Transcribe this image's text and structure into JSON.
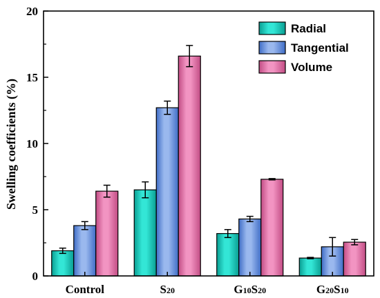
{
  "chart_data": {
    "type": "bar",
    "title": "",
    "xlabel": "",
    "ylabel": "Swelling coefficients (%)",
    "ylim": [
      0,
      20
    ],
    "yticks": [
      0,
      5,
      10,
      15,
      20
    ],
    "categories": [
      {
        "id": "control",
        "parts": [
          {
            "t": "Control",
            "sub": false
          }
        ]
      },
      {
        "id": "s20",
        "parts": [
          {
            "t": "S",
            "sub": false
          },
          {
            "t": "20",
            "sub": true
          }
        ]
      },
      {
        "id": "g10s20",
        "parts": [
          {
            "t": "G",
            "sub": false
          },
          {
            "t": "10",
            "sub": true
          },
          {
            "t": "S",
            "sub": false
          },
          {
            "t": "20",
            "sub": true
          }
        ]
      },
      {
        "id": "g20s10",
        "parts": [
          {
            "t": "G",
            "sub": false
          },
          {
            "t": "20",
            "sub": true
          },
          {
            "t": "S",
            "sub": false
          },
          {
            "t": "10",
            "sub": true
          }
        ]
      }
    ],
    "series": [
      {
        "name": "Radial",
        "color": "#33e6d6",
        "color_dark": "#0a9e92",
        "values": [
          1.9,
          6.5,
          3.2,
          1.35
        ],
        "errors": [
          0.2,
          0.6,
          0.3,
          0.05
        ]
      },
      {
        "name": "Tangential",
        "color": "#9ab8ee",
        "color_dark": "#3f6dc6",
        "values": [
          3.8,
          12.7,
          4.3,
          2.2
        ],
        "errors": [
          0.3,
          0.5,
          0.2,
          0.7
        ]
      },
      {
        "name": "Volume",
        "color": "#f294c2",
        "color_dark": "#c24c84",
        "values": [
          6.4,
          16.6,
          7.3,
          2.55
        ],
        "errors": [
          0.45,
          0.8,
          0.05,
          0.2
        ]
      }
    ],
    "legend_position": "top-right",
    "grid": false
  }
}
